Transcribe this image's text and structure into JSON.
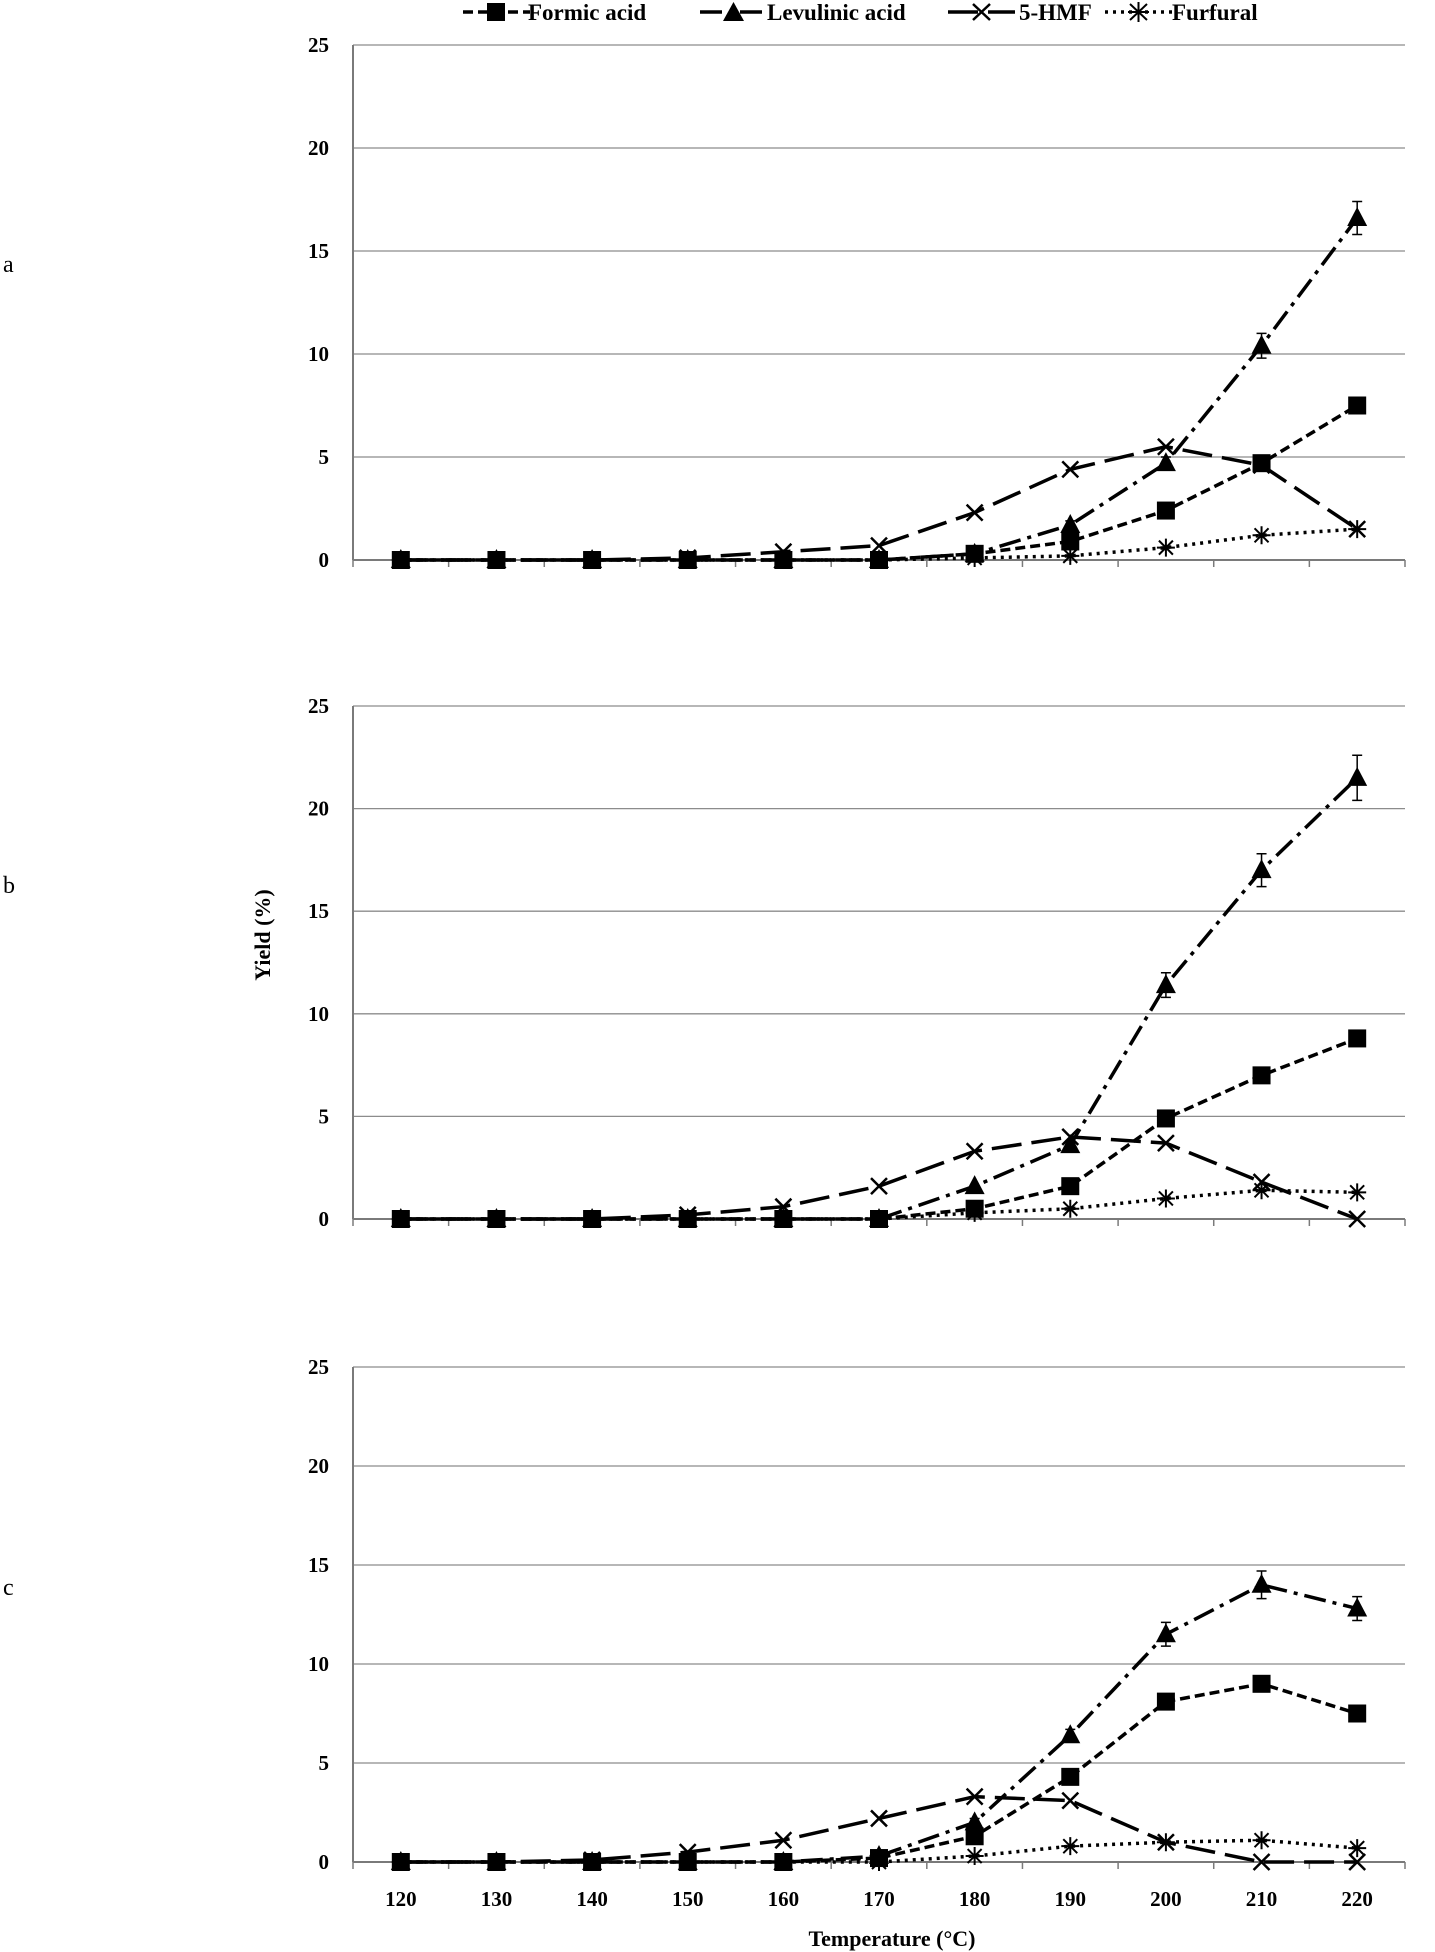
{
  "chart_data": {
    "type": "line",
    "x_label": "Temperature (°C)",
    "y_label": "Yield (%)",
    "x": [
      120,
      130,
      140,
      150,
      160,
      170,
      180,
      190,
      200,
      210,
      220
    ],
    "xlim": [
      115,
      225
    ],
    "ylim": [
      0,
      25
    ],
    "y_ticks": [
      0,
      5,
      10,
      15,
      20,
      25
    ],
    "grid": "horizontal",
    "legend_position": "top",
    "legend": [
      "Formic acid",
      "Levulinic acid",
      "5-HMF",
      "Furfural"
    ],
    "series_styles": [
      {
        "name": "Formic acid",
        "marker": "square",
        "dash": "10,5"
      },
      {
        "name": "Levulinic acid",
        "marker": "triangle",
        "dash": "22,7,4,7"
      },
      {
        "name": "5-HMF",
        "marker": "x",
        "dash": "30,10"
      },
      {
        "name": "Furfural",
        "marker": "asterisk",
        "dash": "3,5"
      }
    ],
    "panels": [
      {
        "label": "a",
        "series": [
          {
            "name": "Formic acid",
            "values": [
              0,
              0,
              0,
              0,
              0,
              0,
              0.3,
              0.9,
              2.4,
              4.7,
              7.5
            ],
            "errors": [
              0,
              0,
              0,
              0,
              0,
              0,
              0,
              0.1,
              0.2,
              0.2,
              0.3
            ]
          },
          {
            "name": "Levulinic acid",
            "values": [
              0,
              0,
              0,
              0,
              0,
              0,
              0.3,
              1.7,
              4.7,
              10.4,
              16.6
            ],
            "errors": [
              0,
              0,
              0,
              0,
              0,
              0,
              0,
              0.2,
              0.3,
              0.6,
              0.8
            ]
          },
          {
            "name": "5-HMF",
            "values": [
              0,
              0,
              0,
              0.1,
              0.4,
              0.7,
              2.3,
              4.4,
              5.5,
              4.6,
              1.5
            ],
            "errors": []
          },
          {
            "name": "Furfural",
            "values": [
              0,
              0,
              0,
              0,
              0,
              0,
              0.1,
              0.2,
              0.6,
              1.2,
              1.5
            ],
            "errors": []
          }
        ]
      },
      {
        "label": "b",
        "series": [
          {
            "name": "Formic acid",
            "values": [
              0,
              0,
              0,
              0,
              0,
              0,
              0.5,
              1.6,
              4.9,
              7.0,
              8.8
            ],
            "errors": [
              0,
              0,
              0,
              0,
              0,
              0,
              0,
              0.1,
              0.2,
              0.2,
              0.3
            ]
          },
          {
            "name": "Levulinic acid",
            "values": [
              0,
              0,
              0,
              0,
              0,
              0,
              1.6,
              3.6,
              11.4,
              17.0,
              21.5
            ],
            "errors": [
              0,
              0,
              0,
              0,
              0,
              0,
              0,
              0.2,
              0.6,
              0.8,
              1.1
            ]
          },
          {
            "name": "5-HMF",
            "values": [
              0,
              0,
              0,
              0.2,
              0.6,
              1.6,
              3.3,
              4.0,
              3.7,
              1.8,
              0
            ],
            "errors": []
          },
          {
            "name": "Furfural",
            "values": [
              0,
              0,
              0,
              0,
              0,
              0,
              0.3,
              0.5,
              1.0,
              1.4,
              1.3
            ],
            "errors": []
          }
        ]
      },
      {
        "label": "c",
        "series": [
          {
            "name": "Formic acid",
            "values": [
              0,
              0,
              0,
              0,
              0,
              0.2,
              1.3,
              4.3,
              8.1,
              9.0,
              7.5
            ],
            "errors": [
              0,
              0,
              0,
              0,
              0,
              0,
              0.1,
              0.2,
              0.3,
              0.3,
              0.2
            ]
          },
          {
            "name": "Levulinic acid",
            "values": [
              0,
              0,
              0,
              0,
              0,
              0.3,
              2.0,
              6.4,
              11.5,
              14.0,
              12.8
            ],
            "errors": [
              0,
              0,
              0,
              0,
              0,
              0,
              0.2,
              0.3,
              0.6,
              0.7,
              0.6
            ]
          },
          {
            "name": "5-HMF",
            "values": [
              0,
              0,
              0.1,
              0.5,
              1.1,
              2.2,
              3.3,
              3.1,
              1.0,
              0,
              0
            ],
            "errors": []
          },
          {
            "name": "Furfural",
            "values": [
              0,
              0,
              0,
              0,
              0,
              0,
              0.3,
              0.8,
              1.0,
              1.1,
              0.7
            ],
            "errors": []
          }
        ]
      }
    ]
  }
}
